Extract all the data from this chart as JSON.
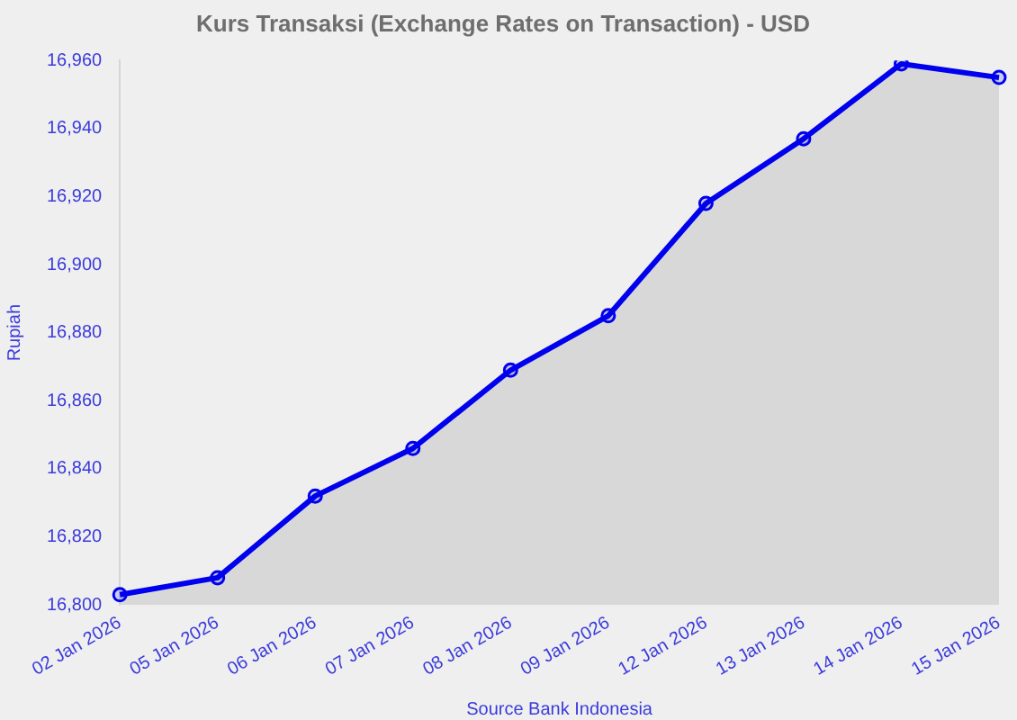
{
  "chart_data": {
    "type": "area",
    "title": "Kurs Transaksi (Exchange Rates on Transaction) - USD",
    "xlabel": "Source Bank Indonesia",
    "ylabel": "Rupiah",
    "categories": [
      "02 Jan 2026",
      "05 Jan 2026",
      "06 Jan 2026",
      "07 Jan 2026",
      "08 Jan 2026",
      "09 Jan 2026",
      "12 Jan 2026",
      "13 Jan 2026",
      "14 Jan 2026",
      "15 Jan 2026"
    ],
    "series": [
      {
        "color": "#0000ee",
        "values": [
          16803,
          16808,
          16832,
          16846,
          16869,
          16885,
          16918,
          16937,
          16959,
          16955
        ]
      }
    ],
    "ylim": [
      16800,
      16960
    ],
    "yticks": [
      {
        "value": 16800,
        "label": "16,800"
      },
      {
        "value": 16820,
        "label": "16,820"
      },
      {
        "value": 16840,
        "label": "16,840"
      },
      {
        "value": 16860,
        "label": "16,860"
      },
      {
        "value": 16880,
        "label": "16,880"
      },
      {
        "value": 16900,
        "label": "16,900"
      },
      {
        "value": 16920,
        "label": "16,920"
      },
      {
        "value": 16940,
        "label": "16,940"
      },
      {
        "value": 16960,
        "label": "16,960"
      }
    ],
    "grid": false,
    "legend": false,
    "marker": "circle"
  }
}
